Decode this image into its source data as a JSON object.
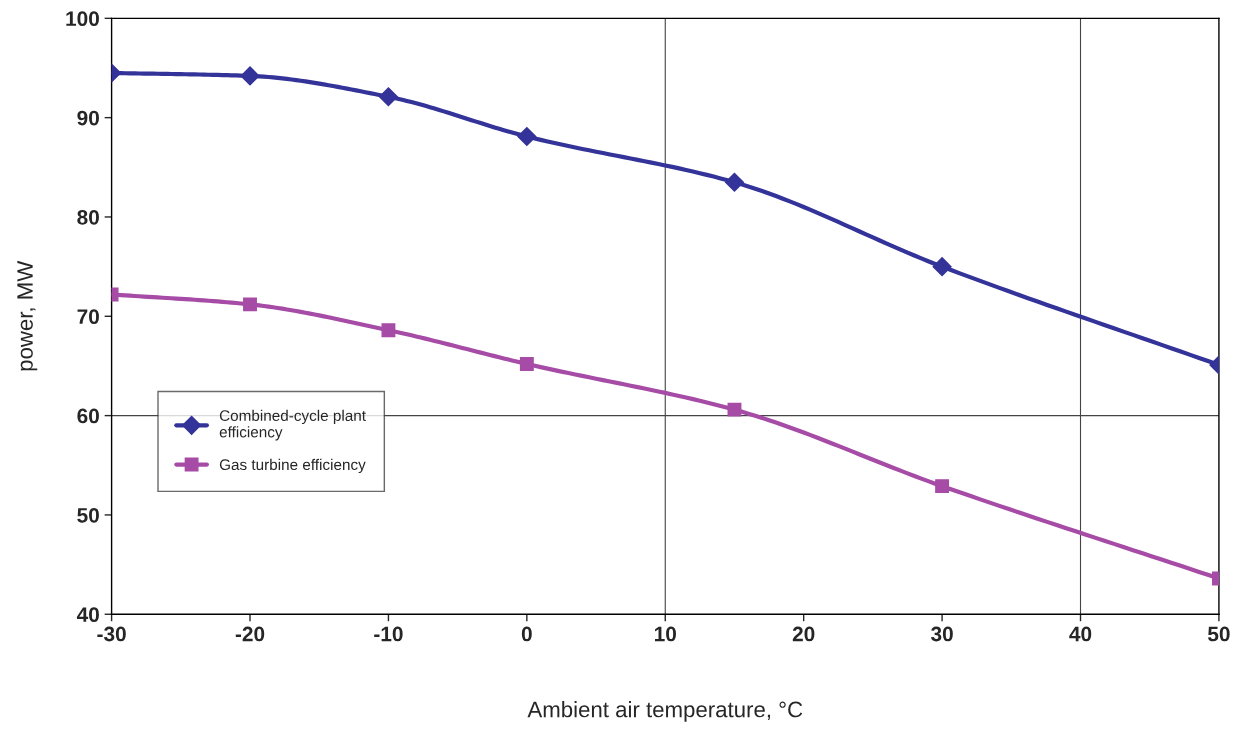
{
  "chart_data": {
    "type": "line",
    "xlabel": "Ambient air temperature, °C",
    "ylabel": "power, MW",
    "x": [
      -30,
      -20,
      -10,
      0,
      15,
      30,
      50
    ],
    "series": [
      {
        "name": "Combined-cycle plant\nefficiency",
        "color": "#333399",
        "marker": "diamond",
        "values": [
          94.5,
          94.2,
          92.1,
          88.1,
          83.5,
          75.0,
          65.1
        ]
      },
      {
        "name": "Gas turbine efficiency",
        "color": "#a64ca6",
        "marker": "square",
        "values": [
          72.2,
          71.2,
          68.6,
          65.2,
          60.6,
          52.9,
          43.6
        ]
      }
    ],
    "xlim": [
      -30,
      50
    ],
    "xticks": [
      -30,
      -20,
      -10,
      0,
      10,
      20,
      30,
      40,
      50
    ],
    "ylim": [
      40,
      100
    ],
    "yticks": [
      40,
      50,
      60,
      70,
      80,
      90,
      100
    ],
    "ref_lines": [
      {
        "axis": "x",
        "value": 10
      },
      {
        "axis": "x",
        "value": 40
      },
      {
        "axis": "y",
        "value": 60
      }
    ],
    "legend": "center left",
    "line_style": "solid",
    "grid": false
  }
}
